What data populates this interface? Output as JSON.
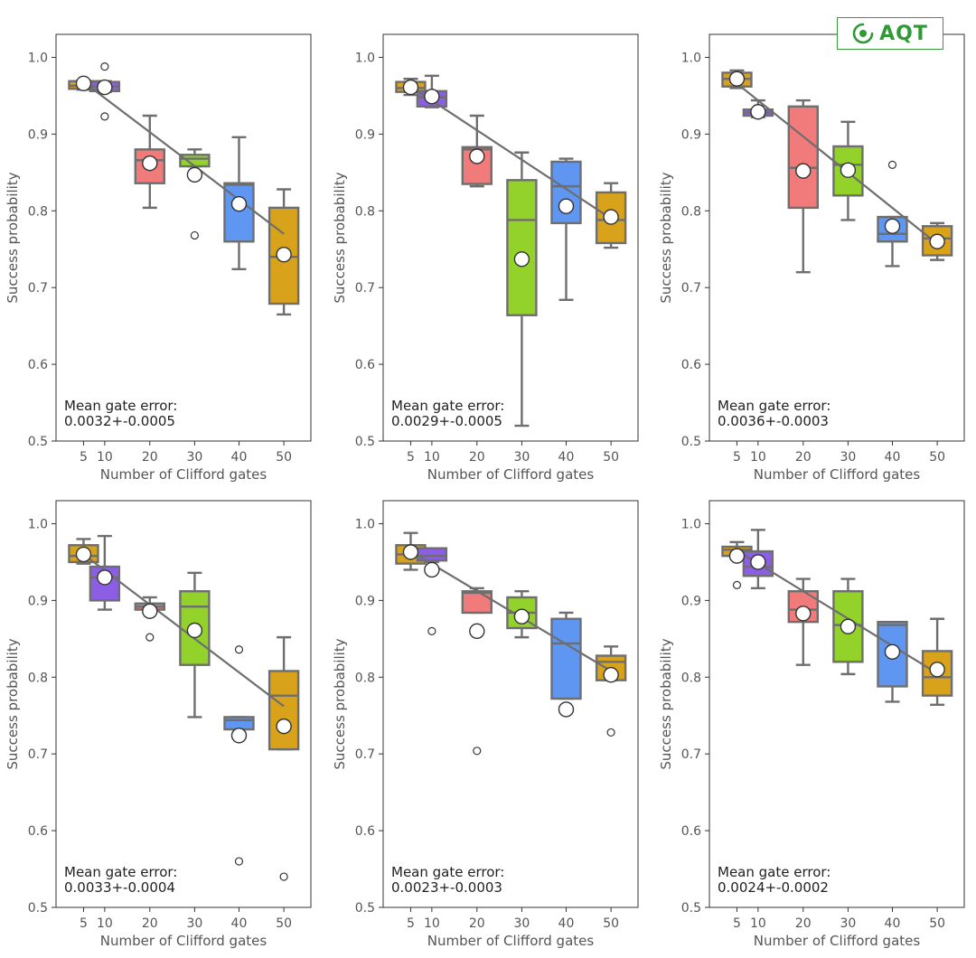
{
  "logo": {
    "text": "AQT",
    "color": "#2f9a35"
  },
  "style": {
    "box_colors": [
      "#d9a21b",
      "#8c5ee6",
      "#f17a7a",
      "#93d22a",
      "#5e96f2",
      "#d9a21b"
    ],
    "line_color": "#6e6e6e"
  },
  "chart_data": [
    {
      "type": "box",
      "xlabel": "Number of Clifford gates",
      "ylabel": "Success probability",
      "ylim": [
        0.5,
        1.03
      ],
      "yticks": [
        "0.5",
        "0.6",
        "0.7",
        "0.8",
        "0.9",
        "1.0"
      ],
      "categories": [
        "5",
        "10",
        "20",
        "30",
        "40",
        "50"
      ],
      "annotation": [
        "Mean gate error:",
        "0.0032+-0.0005"
      ],
      "fit": [
        [
          5,
          0.968
        ],
        [
          50,
          0.77
        ]
      ],
      "boxes": [
        {
          "x": 5,
          "whislo": 0.958,
          "q1": 0.959,
          "med": 0.963,
          "q3": 0.969,
          "whishi": 0.97,
          "fliers": [],
          "mean": 0.966
        },
        {
          "x": 10,
          "whislo": 0.955,
          "q1": 0.956,
          "med": 0.962,
          "q3": 0.968,
          "whishi": 0.969,
          "fliers": [
            0.988,
            0.923
          ],
          "mean": 0.961
        },
        {
          "x": 20,
          "whislo": 0.804,
          "q1": 0.836,
          "med": 0.866,
          "q3": 0.88,
          "whishi": 0.924,
          "fliers": [],
          "mean": 0.862
        },
        {
          "x": 30,
          "whislo": 0.858,
          "q1": 0.858,
          "med": 0.868,
          "q3": 0.873,
          "whishi": 0.88,
          "fliers": [
            0.768
          ],
          "mean": 0.847
        },
        {
          "x": 40,
          "whislo": 0.724,
          "q1": 0.76,
          "med": 0.834,
          "q3": 0.836,
          "whishi": 0.896,
          "fliers": [],
          "mean": 0.809
        },
        {
          "x": 50,
          "whislo": 0.665,
          "q1": 0.679,
          "med": 0.74,
          "q3": 0.804,
          "whishi": 0.828,
          "fliers": [],
          "mean": 0.743
        }
      ]
    },
    {
      "type": "box",
      "xlabel": "Number of Clifford gates",
      "ylabel": "Success probability",
      "ylim": [
        0.5,
        1.03
      ],
      "yticks": [
        "0.5",
        "0.6",
        "0.7",
        "0.8",
        "0.9",
        "1.0"
      ],
      "categories": [
        "5",
        "10",
        "20",
        "30",
        "40",
        "50"
      ],
      "annotation": [
        "Mean gate error:",
        "0.0029+-0.0005"
      ],
      "fit": [
        [
          5,
          0.962
        ],
        [
          50,
          0.79
        ]
      ],
      "boxes": [
        {
          "x": 5,
          "whislo": 0.951,
          "q1": 0.955,
          "med": 0.96,
          "q3": 0.968,
          "whishi": 0.972,
          "fliers": [],
          "mean": 0.961
        },
        {
          "x": 10,
          "whislo": 0.935,
          "q1": 0.936,
          "med": 0.948,
          "q3": 0.956,
          "whishi": 0.976,
          "fliers": [],
          "mean": 0.949
        },
        {
          "x": 20,
          "whislo": 0.832,
          "q1": 0.835,
          "med": 0.88,
          "q3": 0.883,
          "whishi": 0.924,
          "fliers": [],
          "mean": 0.871
        },
        {
          "x": 30,
          "whislo": 0.52,
          "q1": 0.664,
          "med": 0.788,
          "q3": 0.84,
          "whishi": 0.876,
          "fliers": [],
          "mean": 0.737
        },
        {
          "x": 40,
          "whislo": 0.684,
          "q1": 0.784,
          "med": 0.832,
          "q3": 0.864,
          "whishi": 0.868,
          "fliers": [],
          "mean": 0.806
        },
        {
          "x": 50,
          "whislo": 0.752,
          "q1": 0.758,
          "med": 0.788,
          "q3": 0.824,
          "whishi": 0.836,
          "fliers": [],
          "mean": 0.792
        }
      ]
    },
    {
      "type": "box",
      "xlabel": "Number of Clifford gates",
      "ylabel": "Success probability",
      "ylim": [
        0.5,
        1.03
      ],
      "yticks": [
        "0.5",
        "0.6",
        "0.7",
        "0.8",
        "0.9",
        "1.0"
      ],
      "categories": [
        "5",
        "10",
        "20",
        "30",
        "40",
        "50"
      ],
      "annotation": [
        "Mean gate error:",
        "0.0036+-0.0003"
      ],
      "fit": [
        [
          5,
          0.966
        ],
        [
          50,
          0.757
        ]
      ],
      "boxes": [
        {
          "x": 5,
          "whislo": 0.96,
          "q1": 0.962,
          "med": 0.972,
          "q3": 0.98,
          "whishi": 0.983,
          "fliers": [],
          "mean": 0.972
        },
        {
          "x": 10,
          "whislo": 0.922,
          "q1": 0.924,
          "med": 0.928,
          "q3": 0.932,
          "whishi": 0.944,
          "fliers": [],
          "mean": 0.929
        },
        {
          "x": 20,
          "whislo": 0.72,
          "q1": 0.804,
          "med": 0.856,
          "q3": 0.936,
          "whishi": 0.944,
          "fliers": [],
          "mean": 0.852
        },
        {
          "x": 30,
          "whislo": 0.788,
          "q1": 0.82,
          "med": 0.86,
          "q3": 0.884,
          "whishi": 0.916,
          "fliers": [],
          "mean": 0.853
        },
        {
          "x": 40,
          "whislo": 0.728,
          "q1": 0.76,
          "med": 0.77,
          "q3": 0.792,
          "whishi": 0.792,
          "fliers": [
            0.86
          ],
          "mean": 0.78
        },
        {
          "x": 50,
          "whislo": 0.736,
          "q1": 0.742,
          "med": 0.764,
          "q3": 0.78,
          "whishi": 0.784,
          "fliers": [],
          "mean": 0.76
        }
      ]
    },
    {
      "type": "box",
      "xlabel": "Number of Clifford gates",
      "ylabel": "Success probability",
      "ylim": [
        0.5,
        1.03
      ],
      "yticks": [
        "0.5",
        "0.6",
        "0.7",
        "0.8",
        "0.9",
        "1.0"
      ],
      "categories": [
        "5",
        "10",
        "20",
        "30",
        "40",
        "50"
      ],
      "annotation": [
        "Mean gate error:",
        "0.0033+-0.0004"
      ],
      "fit": [
        [
          5,
          0.96
        ],
        [
          50,
          0.762
        ]
      ],
      "boxes": [
        {
          "x": 5,
          "whislo": 0.948,
          "q1": 0.95,
          "med": 0.958,
          "q3": 0.972,
          "whishi": 0.98,
          "fliers": [],
          "mean": 0.96
        },
        {
          "x": 10,
          "whislo": 0.888,
          "q1": 0.9,
          "med": 0.93,
          "q3": 0.944,
          "whishi": 0.984,
          "fliers": [],
          "mean": 0.93
        },
        {
          "x": 20,
          "whislo": 0.888,
          "q1": 0.888,
          "med": 0.892,
          "q3": 0.896,
          "whishi": 0.904,
          "fliers": [
            0.852
          ],
          "mean": 0.886
        },
        {
          "x": 30,
          "whislo": 0.748,
          "q1": 0.816,
          "med": 0.892,
          "q3": 0.912,
          "whishi": 0.936,
          "fliers": [],
          "mean": 0.861
        },
        {
          "x": 40,
          "whislo": 0.732,
          "q1": 0.732,
          "med": 0.744,
          "q3": 0.748,
          "whishi": 0.748,
          "fliers": [
            0.836,
            0.56
          ],
          "mean": 0.724
        },
        {
          "x": 50,
          "whislo": 0.706,
          "q1": 0.706,
          "med": 0.776,
          "q3": 0.808,
          "whishi": 0.852,
          "fliers": [
            0.54
          ],
          "mean": 0.736
        }
      ]
    },
    {
      "type": "box",
      "xlabel": "Number of Clifford gates",
      "ylabel": "Success probability",
      "ylim": [
        0.5,
        1.03
      ],
      "yticks": [
        "0.5",
        "0.6",
        "0.7",
        "0.8",
        "0.9",
        "1.0"
      ],
      "categories": [
        "5",
        "10",
        "20",
        "30",
        "40",
        "50"
      ],
      "annotation": [
        "Mean gate error:",
        "0.0023+-0.0003"
      ],
      "fit": [
        [
          5,
          0.964
        ],
        [
          50,
          0.808
        ]
      ],
      "boxes": [
        {
          "x": 5,
          "whislo": 0.94,
          "q1": 0.948,
          "med": 0.96,
          "q3": 0.972,
          "whishi": 0.988,
          "fliers": [],
          "mean": 0.963
        },
        {
          "x": 10,
          "whislo": 0.95,
          "q1": 0.952,
          "med": 0.958,
          "q3": 0.968,
          "whishi": 0.968,
          "fliers": [
            0.86
          ],
          "mean": 0.94
        },
        {
          "x": 20,
          "whislo": 0.884,
          "q1": 0.884,
          "med": 0.91,
          "q3": 0.912,
          "whishi": 0.916,
          "fliers": [
            0.704
          ],
          "mean": 0.86
        },
        {
          "x": 30,
          "whislo": 0.852,
          "q1": 0.864,
          "med": 0.884,
          "q3": 0.904,
          "whishi": 0.912,
          "fliers": [],
          "mean": 0.879
        },
        {
          "x": 40,
          "whislo": 0.772,
          "q1": 0.772,
          "med": 0.844,
          "q3": 0.876,
          "whishi": 0.884,
          "fliers": [],
          "mean": 0.758
        },
        {
          "x": 50,
          "whislo": 0.796,
          "q1": 0.796,
          "med": 0.82,
          "q3": 0.828,
          "whishi": 0.84,
          "fliers": [
            0.728
          ],
          "mean": 0.803
        }
      ]
    },
    {
      "type": "box",
      "xlabel": "Number of Clifford gates",
      "ylabel": "Success probability",
      "ylim": [
        0.5,
        1.03
      ],
      "yticks": [
        "0.5",
        "0.6",
        "0.7",
        "0.8",
        "0.9",
        "1.0"
      ],
      "categories": [
        "5",
        "10",
        "20",
        "30",
        "40",
        "50"
      ],
      "annotation": [
        "Mean gate error:",
        "0.0024+-0.0002"
      ],
      "fit": [
        [
          5,
          0.965
        ],
        [
          50,
          0.805
        ]
      ],
      "boxes": [
        {
          "x": 5,
          "whislo": 0.956,
          "q1": 0.958,
          "med": 0.966,
          "q3": 0.97,
          "whishi": 0.976,
          "fliers": [
            0.92
          ],
          "mean": 0.958
        },
        {
          "x": 10,
          "whislo": 0.916,
          "q1": 0.932,
          "med": 0.944,
          "q3": 0.964,
          "whishi": 0.992,
          "fliers": [],
          "mean": 0.95
        },
        {
          "x": 20,
          "whislo": 0.816,
          "q1": 0.872,
          "med": 0.888,
          "q3": 0.912,
          "whishi": 0.928,
          "fliers": [],
          "mean": 0.883
        },
        {
          "x": 30,
          "whislo": 0.804,
          "q1": 0.82,
          "med": 0.868,
          "q3": 0.912,
          "whishi": 0.928,
          "fliers": [],
          "mean": 0.866
        },
        {
          "x": 40,
          "whislo": 0.768,
          "q1": 0.788,
          "med": 0.868,
          "q3": 0.872,
          "whishi": 0.872,
          "fliers": [],
          "mean": 0.833
        },
        {
          "x": 50,
          "whislo": 0.764,
          "q1": 0.776,
          "med": 0.8,
          "q3": 0.834,
          "whishi": 0.876,
          "fliers": [],
          "mean": 0.81
        }
      ]
    }
  ]
}
